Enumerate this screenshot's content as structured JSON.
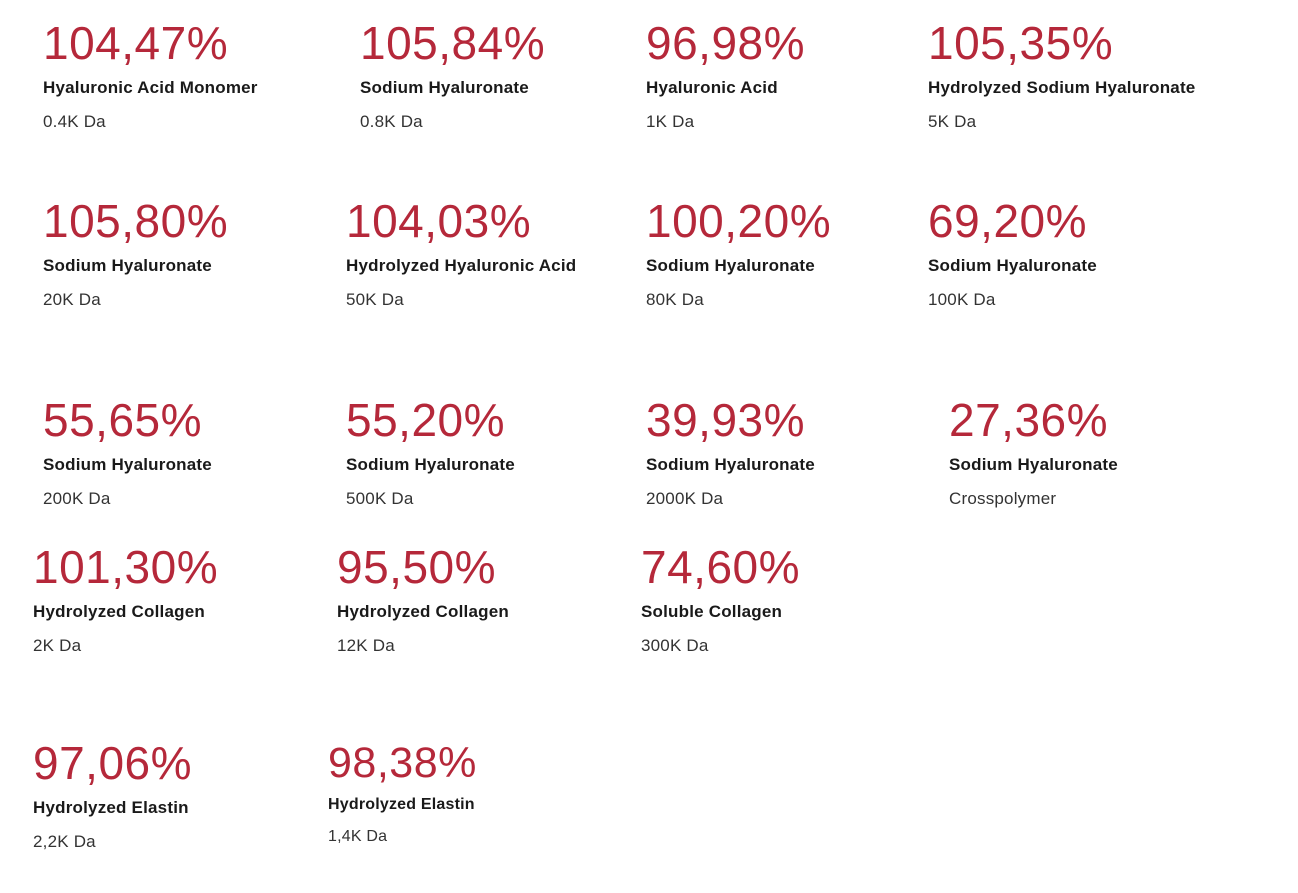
{
  "stats": [
    {
      "value": "104,47%",
      "name": "Hyaluronic Acid Monomer",
      "weight": "0.4K Da"
    },
    {
      "value": "105,84%",
      "name": "Sodium Hyaluronate",
      "weight": "0.8K Da"
    },
    {
      "value": "96,98%",
      "name": "Hyaluronic Acid",
      "weight": "1K Da"
    },
    {
      "value": "105,35%",
      "name": "Hydrolyzed Sodium Hyaluronate",
      "weight": "5K Da"
    },
    {
      "value": "105,80%",
      "name": "Sodium Hyaluronate",
      "weight": "20K Da"
    },
    {
      "value": "104,03%",
      "name": "Hydrolyzed Hyaluronic Acid",
      "weight": "50K Da"
    },
    {
      "value": "100,20%",
      "name": "Sodium Hyaluronate",
      "weight": "80K Da"
    },
    {
      "value": "69,20%",
      "name": "Sodium Hyaluronate",
      "weight": "100K Da"
    },
    {
      "value": "55,65%",
      "name": "Sodium Hyaluronate",
      "weight": "200K Da"
    },
    {
      "value": "55,20%",
      "name": "Sodium Hyaluronate",
      "weight": "500K Da"
    },
    {
      "value": "39,93%",
      "name": "Sodium Hyaluronate",
      "weight": "2000K Da"
    },
    {
      "value": "27,36%",
      "name": "Sodium Hyaluronate",
      "weight": "Crosspolymer"
    },
    {
      "value": "101,30%",
      "name": "Hydrolyzed Collagen",
      "weight": "2K Da"
    },
    {
      "value": "95,50%",
      "name": "Hydrolyzed Collagen",
      "weight": "12K Da"
    },
    {
      "value": "74,60%",
      "name": "Soluble Collagen",
      "weight": "300K Da"
    },
    {
      "value": "97,06%",
      "name": "Hydrolyzed Elastin",
      "weight": "2,2K Da"
    },
    {
      "value": "98,38%",
      "name": "Hydrolyzed Elastin",
      "weight": "1,4K Da"
    }
  ],
  "colors": {
    "accent": "#b5283a",
    "text": "#1a1a1a"
  }
}
